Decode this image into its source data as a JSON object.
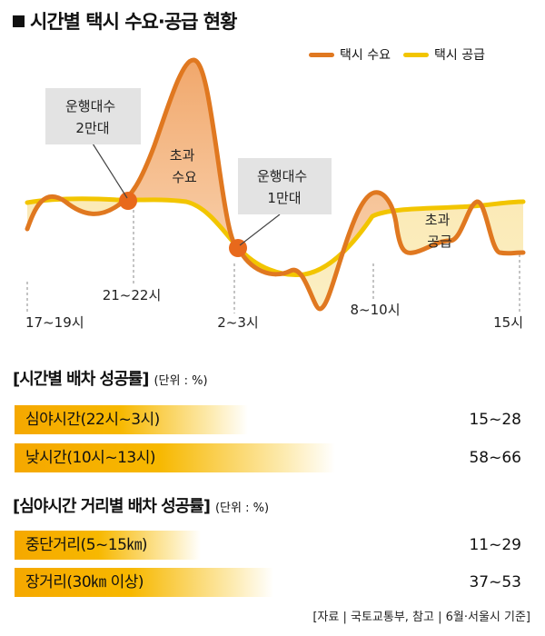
{
  "header": {
    "title": "시간별 택시 수요·공급 현황"
  },
  "legend": [
    {
      "label": "택시 수요",
      "color": "#e07820"
    },
    {
      "label": "택시 공급",
      "color": "#f2c500"
    }
  ],
  "chart_data": {
    "type": "line",
    "title": "시간별 택시 수요·공급 현황",
    "x_tick_labels": [
      "17~19시",
      "21~22시",
      "2~3시",
      "8~10시",
      "15시"
    ],
    "series": [
      {
        "name": "택시 수요",
        "color": "#e07820"
      },
      {
        "name": "택시 공급",
        "color": "#f2c500"
      }
    ],
    "annotations": [
      {
        "text": "운행대수\n2만대"
      },
      {
        "text": "운행대수\n1만대"
      },
      {
        "text": "초과\n수요"
      },
      {
        "text": "초과\n공급"
      }
    ],
    "grid": false,
    "legend_position": "top-right"
  },
  "section1": {
    "title": "[시간별 배차 성공률]",
    "unit": "(단위 : %)",
    "rows": [
      {
        "label": "심야시간(22시~3시)",
        "value": "15~28",
        "fill": 0.45
      },
      {
        "label": "낮시간(10시~13시)",
        "value": "58~66",
        "fill": 0.62
      }
    ]
  },
  "section2": {
    "title": "[심야시간 거리별 배차 성공률]",
    "unit": "(단위 : %)",
    "rows": [
      {
        "label": "중단거리(5~15㎞)",
        "value": "11~29",
        "fill": 0.36
      },
      {
        "label": "장거리(30㎞ 이상)",
        "value": "37~53",
        "fill": 0.5
      }
    ]
  },
  "source": "[자료 | 국토교통부, 참고 | 6월·서울시 기준]"
}
